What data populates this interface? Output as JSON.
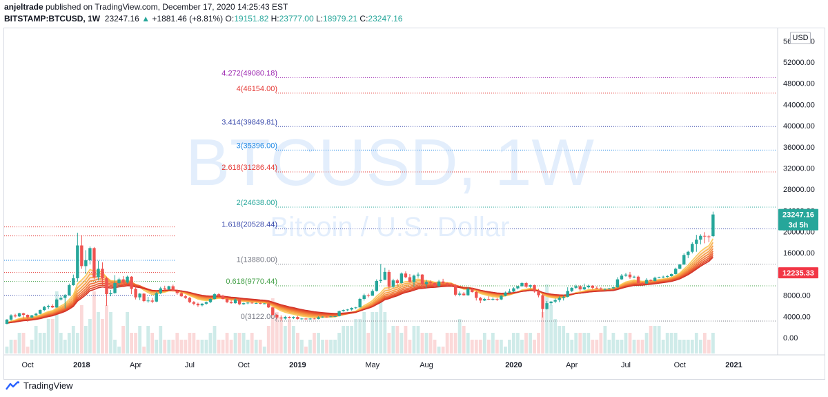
{
  "header": {
    "author": "anjeltrade",
    "published": "published on TradingView.com, December 17, 2020 14:25:43 EST",
    "symbol": "BITSTAMP:BTCUSD, 1W",
    "last": "23247.16",
    "change_arrow": "▲",
    "change": "+1881.46 (+8.81%)",
    "o_label": "O:",
    "o_value": "19151.82",
    "h_label": "H:",
    "h_value": "23777.00",
    "l_label": "L:",
    "l_value": "18979.21",
    "c_label": "C:",
    "c_value": "23247.16"
  },
  "watermark": {
    "main": "BTCUSD, 1W",
    "sub": "Bitcoin / U.S. Dollar"
  },
  "currency_button": "USD",
  "footer": {
    "brand": "TradingView"
  },
  "colors": {
    "up": "#26a69a",
    "down": "#ef5350",
    "watermark": "#e3eefc",
    "label_blue": "#2962ff"
  },
  "chart_data": {
    "type": "candlestick",
    "timeframe": "1W",
    "ylim": [
      -3000,
      58000
    ],
    "yticks": [
      0,
      4000,
      8000,
      12000,
      16000,
      20000,
      24000,
      28000,
      32000,
      36000,
      40000,
      44000,
      48000,
      52000,
      56000
    ],
    "ytick_labels": [
      "0.00",
      "4000.00",
      "8000.00",
      "12000.00",
      "16000.00",
      "20000.00",
      "24000.00",
      "28000.00",
      "32000.00",
      "36000.00",
      "40000.00",
      "44000.00",
      "48000.00",
      "52000.00",
      "56000.00"
    ],
    "x_labels": [
      {
        "label": "Oct",
        "week": 5
      },
      {
        "label": "2018",
        "week": 18
      },
      {
        "label": "Apr",
        "week": 31
      },
      {
        "label": "Jul",
        "week": 44
      },
      {
        "label": "Oct",
        "week": 57
      },
      {
        "label": "2019",
        "week": 70
      },
      {
        "label": "May",
        "week": 88
      },
      {
        "label": "Aug",
        "week": 101
      },
      {
        "label": "2020",
        "week": 122
      },
      {
        "label": "Apr",
        "week": 136
      },
      {
        "label": "Jul",
        "week": 149
      },
      {
        "label": "Oct",
        "week": 162
      },
      {
        "label": "2021",
        "week": 175
      }
    ],
    "fib_levels": [
      {
        "ratio": "4.272",
        "price": 49080.18,
        "label": "4.272(49080.18)",
        "color": "#9c27b0"
      },
      {
        "ratio": "4",
        "price": 46154.0,
        "label": "4(46154.00)",
        "color": "#e53935"
      },
      {
        "ratio": "3.414",
        "price": 39849.81,
        "label": "3.414(39849.81)",
        "color": "#3949ab"
      },
      {
        "ratio": "3",
        "price": 35396.0,
        "label": "3(35396.00)",
        "color": "#1e88e5"
      },
      {
        "ratio": "2.618",
        "price": 31286.44,
        "label": "2.618(31286.44)",
        "color": "#e53935"
      },
      {
        "ratio": "2",
        "price": 24638.0,
        "label": "2(24638.00)",
        "color": "#26a69a"
      },
      {
        "ratio": "1.618",
        "price": 20528.44,
        "label": "1.618(20528.44)",
        "color": "#3949ab"
      },
      {
        "ratio": "1",
        "price": 13880.0,
        "label": "1(13880.00)",
        "color": "#787b86"
      },
      {
        "ratio": "0.618",
        "price": 9770.44,
        "label": "0.618(9770.44)",
        "color": "#43a047"
      },
      {
        "ratio": "0",
        "price": 3122.0,
        "label": "0(3122.00)",
        "color": "#787b86"
      }
    ],
    "left_lines": [
      {
        "price": 20900,
        "color": "#e53935"
      },
      {
        "price": 19200,
        "color": "#e53935"
      },
      {
        "price": 14600,
        "color": "#1e88e5"
      },
      {
        "price": 12300,
        "color": "#e53935"
      },
      {
        "price": 10600,
        "color": "#43a047"
      },
      {
        "price": 8000,
        "color": "#3949ab"
      }
    ],
    "price_labels": [
      {
        "text": "23247.16",
        "price": 23247.16,
        "color": "#26a69a"
      },
      {
        "text": "3d 5h",
        "price": 21300,
        "color": "#26a69a"
      },
      {
        "text": "12235.33",
        "price": 12235.33,
        "color": "#f23645"
      }
    ],
    "candles": [
      [
        2600,
        3500,
        2500,
        3400
      ],
      [
        3400,
        4400,
        3200,
        4200
      ],
      [
        4200,
        4500,
        3800,
        4000
      ],
      [
        4000,
        4700,
        3900,
        4600
      ],
      [
        4600,
        4700,
        3600,
        4300
      ],
      [
        4300,
        4400,
        3000,
        3800
      ],
      [
        3800,
        4300,
        3700,
        4200
      ],
      [
        4200,
        4700,
        4100,
        4500
      ],
      [
        4500,
        5300,
        4400,
        5200
      ],
      [
        5200,
        6000,
        5000,
        5800
      ],
      [
        5800,
        6200,
        5400,
        6000
      ],
      [
        6000,
        6300,
        5600,
        5700
      ],
      [
        5700,
        7400,
        5600,
        7200
      ],
      [
        7200,
        7900,
        7000,
        7500
      ],
      [
        7500,
        8200,
        5500,
        8000
      ],
      [
        8000,
        10200,
        7900,
        9900
      ],
      [
        9900,
        11900,
        9800,
        11200
      ],
      [
        11200,
        19800,
        10600,
        17400
      ],
      [
        17400,
        19300,
        13000,
        13500
      ],
      [
        13500,
        16500,
        12000,
        14600
      ],
      [
        14600,
        17200,
        13800,
        16900
      ],
      [
        16900,
        17100,
        11000,
        11400
      ],
      [
        11400,
        14500,
        10800,
        13000
      ],
      [
        13000,
        14200,
        10000,
        11200
      ],
      [
        11200,
        11500,
        6000,
        8200
      ],
      [
        8200,
        9000,
        7800,
        8400
      ],
      [
        8400,
        11800,
        8300,
        10300
      ],
      [
        10300,
        11300,
        9500,
        11000
      ],
      [
        11000,
        11600,
        9800,
        10400
      ],
      [
        10400,
        11700,
        10200,
        11500
      ],
      [
        11500,
        11600,
        8200,
        9200
      ],
      [
        9200,
        9700,
        7200,
        7600
      ],
      [
        7600,
        8400,
        7100,
        8300
      ],
      [
        8300,
        8400,
        6700,
        6900
      ],
      [
        6900,
        7700,
        6600,
        7000
      ],
      [
        7000,
        7500,
        6500,
        6800
      ],
      [
        6800,
        8600,
        6700,
        8400
      ],
      [
        8400,
        9600,
        8200,
        9300
      ],
      [
        9300,
        9800,
        8900,
        9100
      ],
      [
        9100,
        9800,
        9000,
        9700
      ],
      [
        9700,
        10000,
        8700,
        8800
      ],
      [
        8800,
        9000,
        8100,
        8400
      ],
      [
        8400,
        8700,
        7700,
        7800
      ],
      [
        7800,
        8100,
        7300,
        7500
      ],
      [
        7500,
        7700,
        6500,
        6700
      ],
      [
        6700,
        6900,
        6100,
        6400
      ],
      [
        6400,
        6600,
        5800,
        6100
      ],
      [
        6100,
        6500,
        5900,
        6400
      ],
      [
        6400,
        6800,
        6200,
        6700
      ],
      [
        6700,
        7400,
        6500,
        7300
      ],
      [
        7300,
        8400,
        7200,
        8200
      ],
      [
        8200,
        8400,
        7700,
        7900
      ],
      [
        7900,
        8100,
        7200,
        7300
      ],
      [
        7300,
        7500,
        6500,
        6700
      ],
      [
        6700,
        7100,
        6400,
        6500
      ],
      [
        6500,
        7400,
        6400,
        7200
      ],
      [
        7200,
        7400,
        6100,
        6300
      ],
      [
        6300,
        6600,
        6200,
        6500
      ],
      [
        6500,
        6700,
        6300,
        6600
      ],
      [
        6600,
        6700,
        6400,
        6500
      ],
      [
        6500,
        6600,
        6400,
        6500
      ],
      [
        6500,
        6600,
        6300,
        6400
      ],
      [
        6400,
        6500,
        6300,
        6450
      ],
      [
        6450,
        6500,
        5600,
        5700
      ],
      [
        5700,
        5800,
        4100,
        4300
      ],
      [
        4300,
        4500,
        3600,
        3800
      ],
      [
        3800,
        4200,
        3200,
        3600
      ],
      [
        3600,
        4100,
        3400,
        3900
      ],
      [
        3900,
        4000,
        3600,
        3700
      ],
      [
        3700,
        4000,
        3500,
        3900
      ],
      [
        3900,
        4100,
        3400,
        3500
      ],
      [
        3500,
        3700,
        3400,
        3600
      ],
      [
        3600,
        3700,
        3400,
        3450
      ],
      [
        3450,
        3700,
        3400,
        3600
      ],
      [
        3600,
        3700,
        3450,
        3500
      ],
      [
        3500,
        4000,
        3450,
        3850
      ],
      [
        3850,
        4000,
        3750,
        3950
      ],
      [
        3950,
        4000,
        3800,
        3900
      ],
      [
        3900,
        4100,
        3850,
        4000
      ],
      [
        4000,
        4100,
        3900,
        4050
      ],
      [
        4050,
        5100,
        4000,
        5000
      ],
      [
        5000,
        5300,
        4900,
        5200
      ],
      [
        5200,
        5400,
        5000,
        5300
      ],
      [
        5300,
        5700,
        5100,
        5600
      ],
      [
        5600,
        5800,
        5400,
        5700
      ],
      [
        5700,
        7500,
        5700,
        7300
      ],
      [
        7300,
        8300,
        7000,
        8000
      ],
      [
        8000,
        8300,
        7600,
        7900
      ],
      [
        7900,
        9100,
        7900,
        8800
      ],
      [
        8800,
        11000,
        8700,
        10700
      ],
      [
        10700,
        13900,
        10300,
        10900
      ],
      [
        10900,
        13200,
        10900,
        12400
      ],
      [
        12400,
        12800,
        9100,
        9600
      ],
      [
        9600,
        11100,
        9400,
        10800
      ],
      [
        10800,
        11100,
        9600,
        10300
      ],
      [
        10300,
        12300,
        10200,
        12100
      ],
      [
        12100,
        12500,
        11200,
        11400
      ],
      [
        11400,
        12000,
        10400,
        10500
      ],
      [
        10500,
        11900,
        9600,
        11700
      ],
      [
        11700,
        12300,
        11300,
        11900
      ],
      [
        11900,
        12000,
        9700,
        10100
      ],
      [
        10100,
        10900,
        9400,
        10500
      ],
      [
        10500,
        10800,
        9900,
        10300
      ],
      [
        10300,
        10400,
        9500,
        9700
      ],
      [
        9700,
        10900,
        9600,
        10600
      ],
      [
        10600,
        11100,
        10100,
        10300
      ],
      [
        10300,
        10400,
        9800,
        10100
      ],
      [
        10100,
        10300,
        9700,
        9900
      ],
      [
        9900,
        10100,
        7800,
        8100
      ],
      [
        8100,
        8700,
        7800,
        8300
      ],
      [
        8300,
        8600,
        7900,
        8000
      ],
      [
        8000,
        9500,
        7900,
        9200
      ],
      [
        9200,
        9400,
        8500,
        8600
      ],
      [
        8600,
        8900,
        7000,
        7500
      ],
      [
        7500,
        7700,
        6500,
        7000
      ],
      [
        7000,
        7500,
        6900,
        7300
      ],
      [
        7300,
        7800,
        7100,
        7200
      ],
      [
        7200,
        7600,
        7000,
        7300
      ],
      [
        7300,
        7500,
        6900,
        7200
      ],
      [
        7200,
        8000,
        7100,
        7900
      ],
      [
        7900,
        8700,
        7800,
        8500
      ],
      [
        8500,
        9200,
        8400,
        8700
      ],
      [
        8700,
        9500,
        8600,
        9300
      ],
      [
        9300,
        9800,
        9100,
        9700
      ],
      [
        9700,
        10500,
        9600,
        10300
      ],
      [
        10300,
        10500,
        9400,
        9600
      ],
      [
        9600,
        10000,
        9300,
        9900
      ],
      [
        9900,
        10000,
        8500,
        8700
      ],
      [
        8700,
        9200,
        7600,
        8000
      ],
      [
        8000,
        8200,
        3800,
        5400
      ],
      [
        5400,
        6900,
        5300,
        6500
      ],
      [
        6500,
        6900,
        6100,
        6800
      ],
      [
        6800,
        7400,
        6500,
        7100
      ],
      [
        7100,
        7800,
        6700,
        7500
      ],
      [
        7500,
        8000,
        7000,
        7700
      ],
      [
        7700,
        9500,
        7600,
        8800
      ],
      [
        8800,
        9500,
        8600,
        9400
      ],
      [
        9400,
        10000,
        9200,
        9700
      ],
      [
        9700,
        9900,
        8800,
        9100
      ],
      [
        9100,
        10200,
        9000,
        9500
      ],
      [
        9500,
        10000,
        9300,
        9800
      ],
      [
        9800,
        9900,
        9100,
        9400
      ],
      [
        9400,
        9700,
        9200,
        9300
      ],
      [
        9300,
        9500,
        9000,
        9100
      ],
      [
        9100,
        9300,
        8900,
        9200
      ],
      [
        9200,
        9400,
        9100,
        9300
      ],
      [
        9300,
        9600,
        9200,
        9500
      ],
      [
        9500,
        11400,
        9400,
        11000
      ],
      [
        11000,
        12000,
        10900,
        11700
      ],
      [
        11700,
        12200,
        11500,
        11900
      ],
      [
        11900,
        12400,
        11100,
        11400
      ],
      [
        11400,
        11700,
        11200,
        11500
      ],
      [
        11500,
        11700,
        10000,
        10300
      ],
      [
        10300,
        10500,
        9900,
        10200
      ],
      [
        10200,
        11200,
        10100,
        10900
      ],
      [
        10900,
        11000,
        10500,
        10700
      ],
      [
        10700,
        11500,
        10600,
        11300
      ],
      [
        11300,
        11500,
        11200,
        11400
      ],
      [
        11400,
        11700,
        11200,
        11500
      ],
      [
        11500,
        11800,
        11300,
        11600
      ],
      [
        11600,
        12100,
        11500,
        12000
      ],
      [
        12000,
        13200,
        11900,
        13000
      ],
      [
        13000,
        13900,
        12900,
        13800
      ],
      [
        13800,
        15900,
        13700,
        15600
      ],
      [
        15600,
        16400,
        15000,
        16200
      ],
      [
        16200,
        18000,
        15900,
        17700
      ],
      [
        17700,
        19400,
        16200,
        18500
      ],
      [
        18500,
        19500,
        17600,
        19200
      ],
      [
        19200,
        19900,
        17800,
        19100
      ],
      [
        19100,
        19400,
        18000,
        19000
      ],
      [
        19151.82,
        23777,
        18979.21,
        23247.16
      ]
    ],
    "volume_ratios": [
      0.1,
      0.2,
      0.2,
      0.3,
      0.3,
      0.1,
      0.2,
      0.4,
      0.3,
      0.3,
      0.5,
      0.5,
      0.9,
      0.3,
      0.2,
      0.3,
      0.4,
      0.3,
      0.7,
      0.4,
      0.5,
      0.9,
      0.6,
      0.5,
      0.7,
      0.6,
      0.2,
      0.1,
      0.4,
      0.6,
      0.3,
      0.3,
      0.4,
      0.1,
      0.4,
      0.3,
      0.2,
      0.4,
      0.2,
      0.2,
      0.2,
      0.3,
      0.2,
      0.2,
      0.3,
      0.3,
      0.2,
      0.2,
      0.2,
      0.3,
      0.4,
      0.2,
      0.2,
      0.3,
      0.2,
      0.3,
      0.3,
      0.3,
      0.2,
      0.3,
      0.2,
      0.2,
      0.1,
      0.4,
      0.8,
      0.6,
      0.5,
      0.4,
      0.5,
      0.4,
      0.3,
      0.2,
      0.1,
      0.2,
      0.3,
      0.3,
      0.2,
      0.2,
      0.2,
      0.2,
      0.3,
      0.4,
      0.4,
      0.4,
      0.5,
      0.5,
      0.6,
      0.3,
      0.6,
      0.6,
      0.8,
      0.6,
      0.3,
      0.4,
      0.4,
      0.3,
      0.4,
      0.2,
      0.4,
      0.4,
      0.3,
      0.3,
      0.3,
      0.2,
      0.1,
      0.1,
      0.3,
      0.3,
      0.3,
      0.5,
      0.4,
      0.3,
      0.2,
      0.2,
      0.2,
      0.3,
      0.2,
      0.3,
      0.2,
      0.2,
      0.1,
      0.2,
      0.3,
      0.3,
      0.2,
      0.3,
      0.3,
      0.2,
      0.3,
      0.6,
      1.0,
      0.7,
      0.5,
      0.4,
      0.4,
      0.3,
      0.2,
      0.3,
      0.3,
      0.3,
      0.3,
      0.2,
      0.2,
      0.3,
      0.4,
      0.2,
      0.3,
      0.2,
      0.2,
      0.3,
      0.3,
      0.2,
      0.2,
      0.2,
      0.3,
      0.4,
      0.4,
      0.4,
      0.2,
      0.3,
      0.3,
      0.3,
      0.2,
      0.2,
      0.2,
      0.2,
      0.3,
      0.2,
      0.3,
      0.2,
      0.3,
      0.4,
      0.4,
      0.4,
      0.5,
      0.3,
      0.4,
      0.1
    ]
  }
}
